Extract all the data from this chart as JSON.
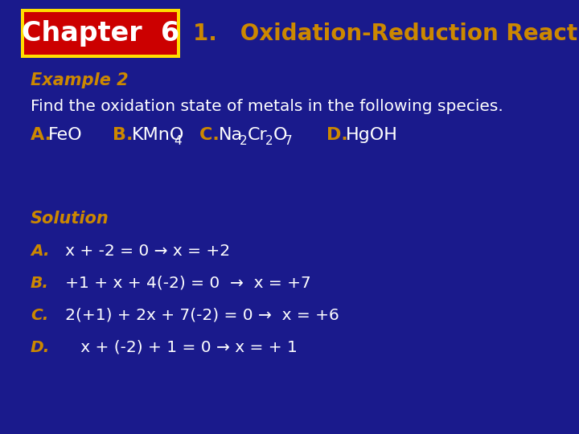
{
  "bg_color": "#1a1a8c",
  "title_chapter_bg": "#cc0000",
  "title_chapter_border": "#ffdd00",
  "title_chapter_text": "Chapter  6",
  "title_chapter_text_color": "#ffffff",
  "title_number": "1.   ",
  "title_text": "Oxidation-Reduction Reactions",
  "title_color": "#cc8800",
  "example_label": "Example 2",
  "example_color": "#cc8800",
  "problem_text": "Find the oxidation state of metals in the following species.",
  "white_color": "#ffffff",
  "gold_color": "#cc8800",
  "solution_label": "Solution",
  "solution_lines": [
    {
      "label": "A.",
      "text": "   x + -2 = 0 → x = +2"
    },
    {
      "label": "B.",
      "text": "   +1 + x + 4(-2) = 0  →  x = +7"
    },
    {
      "label": "C.",
      "text": "   2(+1) + 2x + 7(-2) = 0 →  x = +6"
    },
    {
      "label": "D.",
      "text": "      x + (-2) + 1 = 0 → x = + 1"
    }
  ],
  "species": {
    "A_label": "A. ",
    "A_main": "FeO",
    "B_label": "B. ",
    "B_main": "KMnO",
    "B_sub": "4",
    "C_label": "C. ",
    "C_pre": "Na",
    "C_sub1": "2",
    "C_mid": "Cr",
    "C_sub2": "2",
    "C_end": "O",
    "C_sub3": "7",
    "D_label": "D. ",
    "D_main": "HgOH"
  }
}
